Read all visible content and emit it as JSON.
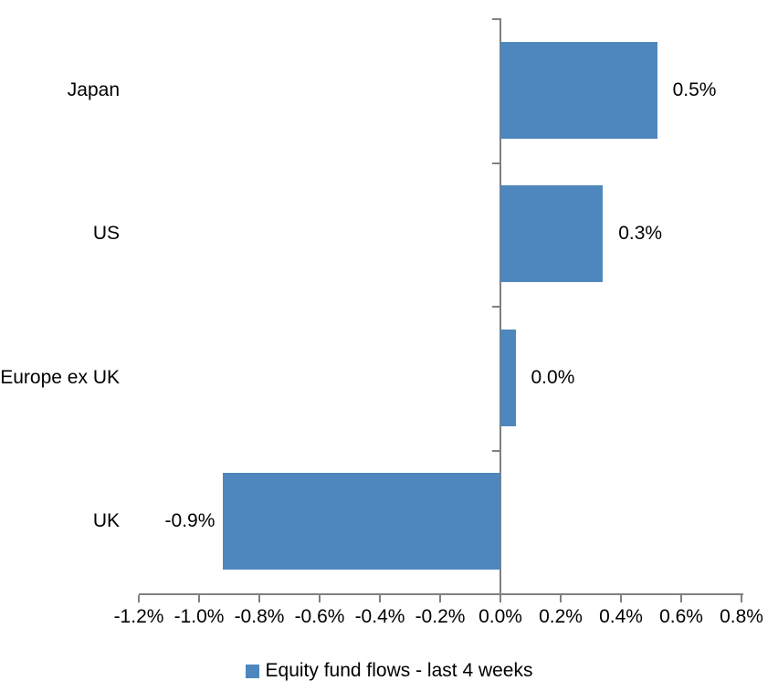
{
  "chart_data": {
    "type": "bar",
    "orientation": "horizontal",
    "title": "",
    "xlabel": "",
    "ylabel": "",
    "categories": [
      "Japan",
      "US",
      "Europe ex UK",
      "UK"
    ],
    "values": [
      0.5,
      0.3,
      0.0,
      -0.9
    ],
    "value_labels": [
      "0.5%",
      "0.3%",
      "0.0%",
      "-0.9%"
    ],
    "bar_render_values": [
      0.52,
      0.34,
      0.05,
      -0.92
    ],
    "xlim": [
      -1.2,
      0.8
    ],
    "x_tick_values": [
      -1.2,
      -1.0,
      -0.8,
      -0.6,
      -0.4,
      -0.2,
      0.0,
      0.2,
      0.4,
      0.6,
      0.8
    ],
    "x_tick_labels": [
      "-1.2%",
      "-1.0%",
      "-0.8%",
      "-0.6%",
      "-0.4%",
      "-0.2%",
      "0.0%",
      "0.2%",
      "0.4%",
      "0.6%",
      "0.8%"
    ],
    "grid": false,
    "legend": {
      "label": "Equity fund flows - last 4 weeks",
      "position": "bottom",
      "marker": "square"
    },
    "colors": {
      "bar": "#4E87BE",
      "axis": "#808080",
      "text": "#000000",
      "background": "#FFFFFF"
    }
  }
}
